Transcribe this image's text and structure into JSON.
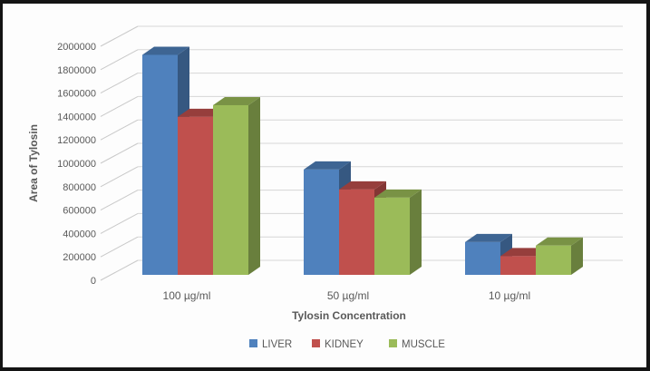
{
  "chart_data": {
    "type": "bar",
    "subtype": "3d-clustered-column",
    "title": "",
    "xlabel": "Tylosin Concentration",
    "ylabel": "Area of Tylosin",
    "categories": [
      "100 µg/ml",
      "50 µg/ml",
      "10 µg/ml"
    ],
    "series": [
      {
        "name": "LIVER",
        "color": "#4F81BD",
        "values": [
          1880000,
          900000,
          280000
        ]
      },
      {
        "name": "KIDNEY",
        "color": "#C0504D",
        "values": [
          1350000,
          730000,
          160000
        ]
      },
      {
        "name": "MUSCLE",
        "color": "#9BBB59",
        "values": [
          1450000,
          660000,
          250000
        ]
      }
    ],
    "ylim": [
      0,
      2000000
    ],
    "ytick_step": 200000,
    "yticks": [
      "0",
      "200000",
      "400000",
      "600000",
      "800000",
      "1000000",
      "1200000",
      "1400000",
      "1600000",
      "1800000",
      "2000000"
    ],
    "grid": "horizontal",
    "legend_position": "bottom"
  },
  "colors": {
    "text": "#595959",
    "gridline": "#d6d6d6",
    "frame": "#141414",
    "background": "#fdfdfd"
  }
}
